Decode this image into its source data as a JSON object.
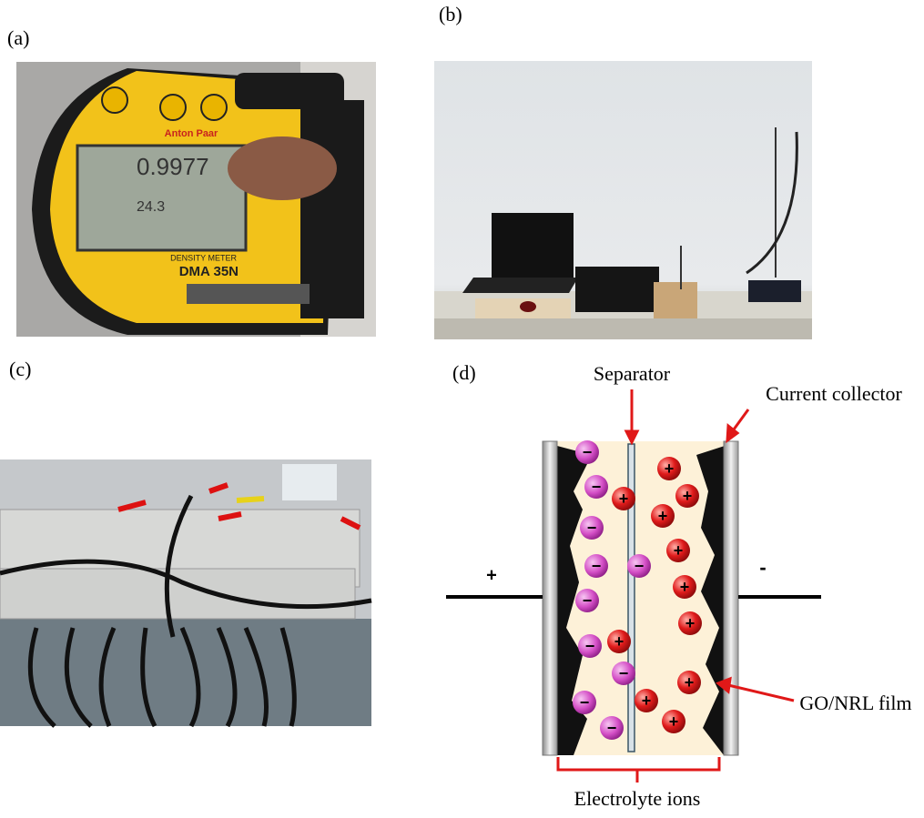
{
  "panels": {
    "a": {
      "label": "(a)",
      "photo_texts": {
        "brand": "Anton Paar",
        "reading": "0.9977",
        "temperature": "24.3",
        "model_caption": "DENSITY METER",
        "model": "DMA 35N"
      }
    },
    "b": {
      "label": "(b)"
    },
    "c": {
      "label": "(c)"
    },
    "d": {
      "label": "(d)",
      "separator": "Separator",
      "current_collector": "Current collector",
      "positive_terminal": "+",
      "negative_terminal": "-",
      "film": "GO/NRL film",
      "electrolyte": "Electrolyte ions",
      "ion_signs": {
        "positive": "+",
        "negative": "−"
      }
    }
  }
}
